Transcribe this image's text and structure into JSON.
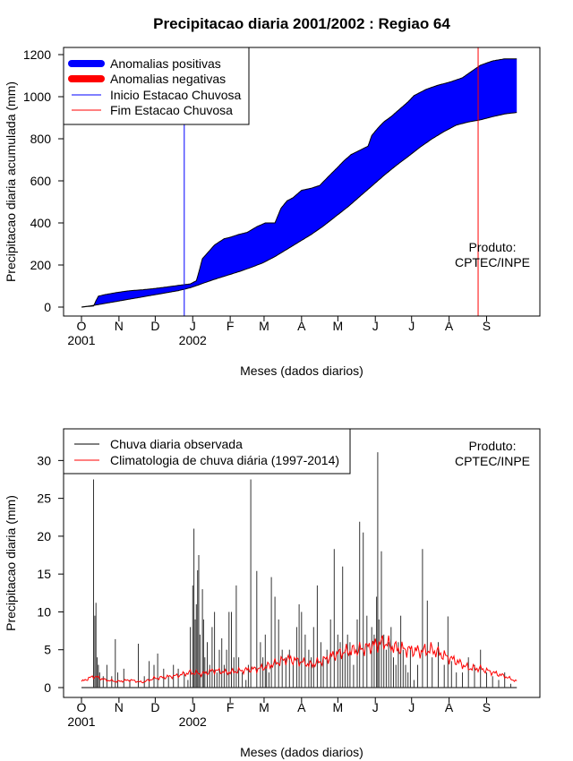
{
  "title": "Precipitacao diaria 2001/2002 : Regiao 64",
  "chart_data": [
    {
      "type": "area",
      "ylabel": "Precipitacao diaria acumulada (mm)",
      "xlabel": "Meses (dados diarios)",
      "ylim": [
        0,
        1200
      ],
      "yticks": [
        0,
        200,
        400,
        600,
        800,
        1000,
        1200
      ],
      "xlim_days": [
        0,
        365
      ],
      "month_ticks": [
        {
          "label": "O",
          "day": 0
        },
        {
          "label": "N",
          "day": 31
        },
        {
          "label": "D",
          "day": 61
        },
        {
          "label": "J",
          "day": 92
        },
        {
          "label": "F",
          "day": 123
        },
        {
          "label": "M",
          "day": 151
        },
        {
          "label": "A",
          "day": 182
        },
        {
          "label": "M",
          "day": 212
        },
        {
          "label": "J",
          "day": 243
        },
        {
          "label": "J",
          "day": 273
        },
        {
          "label": "A",
          "day": 304
        },
        {
          "label": "S",
          "day": 335
        }
      ],
      "year_labels": [
        {
          "label": "2001",
          "day": 0
        },
        {
          "label": "2002",
          "day": 92
        }
      ],
      "legend": [
        {
          "label": "Anomalias positivas",
          "color": "#0000ff"
        },
        {
          "label": "Anomalias negativas",
          "color": "#ff0000"
        },
        {
          "label": "Inicio Estacao Chuvosa",
          "color": "#0000ff"
        },
        {
          "label": "Fim Estacao Chuvosa",
          "color": "#ff0000"
        }
      ],
      "annotation": [
        "Produto:",
        "CPTEC/INPE"
      ],
      "season_start_day": 85,
      "season_end_day": 328,
      "observed_cumulative": {
        "days": [
          0,
          5,
          10,
          12,
          14,
          20,
          30,
          40,
          50,
          60,
          70,
          80,
          90,
          95,
          97,
          100,
          110,
          118,
          122,
          130,
          137,
          145,
          152,
          160,
          165,
          170,
          175,
          182,
          190,
          197,
          205,
          212,
          217,
          223,
          230,
          237,
          240,
          245,
          250,
          256,
          262,
          270,
          275,
          285,
          295,
          305,
          315,
          320,
          325,
          330,
          340,
          350,
          360
        ],
        "values": [
          0,
          3,
          5,
          30,
          52,
          60,
          70,
          78,
          82,
          88,
          95,
          103,
          110,
          125,
          165,
          230,
          295,
          325,
          330,
          345,
          355,
          382,
          400,
          400,
          470,
          505,
          520,
          555,
          565,
          578,
          625,
          665,
          695,
          725,
          745,
          765,
          815,
          850,
          880,
          905,
          935,
          975,
          1005,
          1035,
          1055,
          1070,
          1090,
          1110,
          1130,
          1150,
          1170,
          1180,
          1180
        ]
      },
      "climatology_cumulative": {
        "days": [
          0,
          10,
          20,
          30,
          40,
          50,
          60,
          70,
          80,
          90,
          100,
          110,
          120,
          130,
          140,
          150,
          160,
          170,
          180,
          190,
          200,
          210,
          220,
          230,
          240,
          250,
          260,
          270,
          280,
          290,
          300,
          310,
          320,
          330,
          340,
          350,
          360
        ],
        "values": [
          0,
          8,
          18,
          28,
          38,
          48,
          58,
          68,
          78,
          92,
          112,
          132,
          150,
          168,
          188,
          210,
          240,
          275,
          310,
          345,
          385,
          430,
          475,
          525,
          575,
          625,
          672,
          715,
          760,
          800,
          835,
          865,
          880,
          890,
          905,
          918,
          925
        ]
      }
    },
    {
      "type": "bar",
      "ylabel": "Precipitacao diaria (mm)",
      "xlabel": "Meses (dados diarios)",
      "ylim": [
        0,
        33
      ],
      "yticks": [
        0,
        5,
        10,
        15,
        20,
        25,
        30
      ],
      "xlim_days": [
        0,
        365
      ],
      "month_ticks": [
        {
          "label": "O",
          "day": 0
        },
        {
          "label": "N",
          "day": 31
        },
        {
          "label": "D",
          "day": 61
        },
        {
          "label": "J",
          "day": 92
        },
        {
          "label": "F",
          "day": 123
        },
        {
          "label": "M",
          "day": 151
        },
        {
          "label": "A",
          "day": 182
        },
        {
          "label": "M",
          "day": 212
        },
        {
          "label": "J",
          "day": 243
        },
        {
          "label": "J",
          "day": 273
        },
        {
          "label": "A",
          "day": 304
        },
        {
          "label": "S",
          "day": 335
        }
      ],
      "year_labels": [
        {
          "label": "2001",
          "day": 0
        },
        {
          "label": "2002",
          "day": 92
        }
      ],
      "legend": [
        {
          "label": "Chuva diaria observada",
          "color": "#000000"
        },
        {
          "label": "Climatologia de chuva diária (1997-2014)",
          "color": "#ff0000"
        }
      ],
      "annotation": [
        "Produto:",
        "CPTEC/INPE"
      ],
      "daily_observed": {
        "days": [
          10,
          11,
          12,
          13,
          14,
          15,
          18,
          21,
          25,
          28,
          30,
          35,
          40,
          47,
          52,
          56,
          60,
          63,
          68,
          72,
          76,
          80,
          85,
          88,
          90,
          92,
          93,
          94,
          95,
          96,
          97,
          98,
          100,
          101,
          102,
          104,
          106,
          108,
          110,
          112,
          114,
          116,
          118,
          120,
          122,
          124,
          126,
          128,
          130,
          133,
          136,
          138,
          140,
          145,
          148,
          150,
          152,
          153,
          155,
          157,
          160,
          163,
          166,
          169,
          172,
          175,
          178,
          180,
          182,
          185,
          188,
          190,
          192,
          195,
          198,
          200,
          203,
          206,
          209,
          212,
          214,
          216,
          218,
          220,
          222,
          225,
          228,
          230,
          233,
          236,
          240,
          242,
          244,
          245,
          246,
          248,
          250,
          252,
          254,
          256,
          258,
          260,
          262,
          264,
          266,
          268,
          270,
          272,
          275,
          278,
          282,
          286,
          290,
          295,
          300,
          303,
          306,
          310,
          315,
          320,
          325,
          330,
          335,
          340,
          345,
          350,
          355,
          360
        ],
        "values": [
          27.5,
          9.5,
          11.2,
          4,
          3,
          2,
          1.5,
          3,
          1.5,
          6.4,
          2,
          2.5,
          1,
          5.8,
          1.5,
          3.5,
          3,
          4.5,
          2.5,
          1.5,
          3,
          2.5,
          2,
          1,
          8,
          13.5,
          21,
          9,
          11,
          15.5,
          17.5,
          7,
          13,
          9,
          4,
          6,
          3,
          8,
          10,
          2,
          5,
          6.5,
          3,
          5,
          10,
          10,
          4,
          13.5,
          4,
          2,
          1,
          3,
          27.5,
          15.4,
          6,
          4,
          7,
          3,
          2,
          14.6,
          12,
          9,
          5,
          4,
          5,
          3,
          8,
          11,
          10,
          7,
          5,
          4,
          8,
          13.5,
          6,
          4,
          5,
          9,
          18.3,
          7,
          6,
          16,
          5,
          7,
          6,
          3,
          9,
          21.9,
          20.5,
          9.5,
          8,
          7,
          12,
          31.1,
          9,
          18,
          7,
          5,
          6,
          8,
          4,
          3,
          6,
          9.5,
          5,
          3,
          2,
          5,
          1,
          3,
          18.3,
          11.5,
          4,
          6,
          3,
          9.4,
          3.5,
          2,
          2,
          4,
          3,
          5,
          2,
          1.5,
          1,
          2,
          0.5,
          0
        ]
      },
      "climatology_daily": {
        "days": [
          0,
          10,
          20,
          30,
          40,
          50,
          60,
          70,
          80,
          90,
          100,
          110,
          120,
          130,
          140,
          150,
          160,
          170,
          180,
          190,
          200,
          210,
          220,
          230,
          240,
          250,
          260,
          270,
          280,
          290,
          300,
          310,
          320,
          330,
          340,
          350,
          360
        ],
        "values": [
          0.8,
          1.5,
          1.0,
          0.8,
          1.0,
          0.7,
          1.2,
          1.4,
          1.6,
          2.0,
          1.8,
          2.3,
          2.0,
          2.2,
          2.4,
          2.6,
          3.2,
          3.8,
          3.5,
          3.0,
          3.6,
          4.4,
          4.8,
          5.0,
          5.5,
          6.0,
          5.2,
          5.0,
          4.8,
          5.0,
          4.2,
          3.5,
          2.6,
          2.5,
          2.0,
          1.5,
          0.8
        ]
      }
    }
  ]
}
